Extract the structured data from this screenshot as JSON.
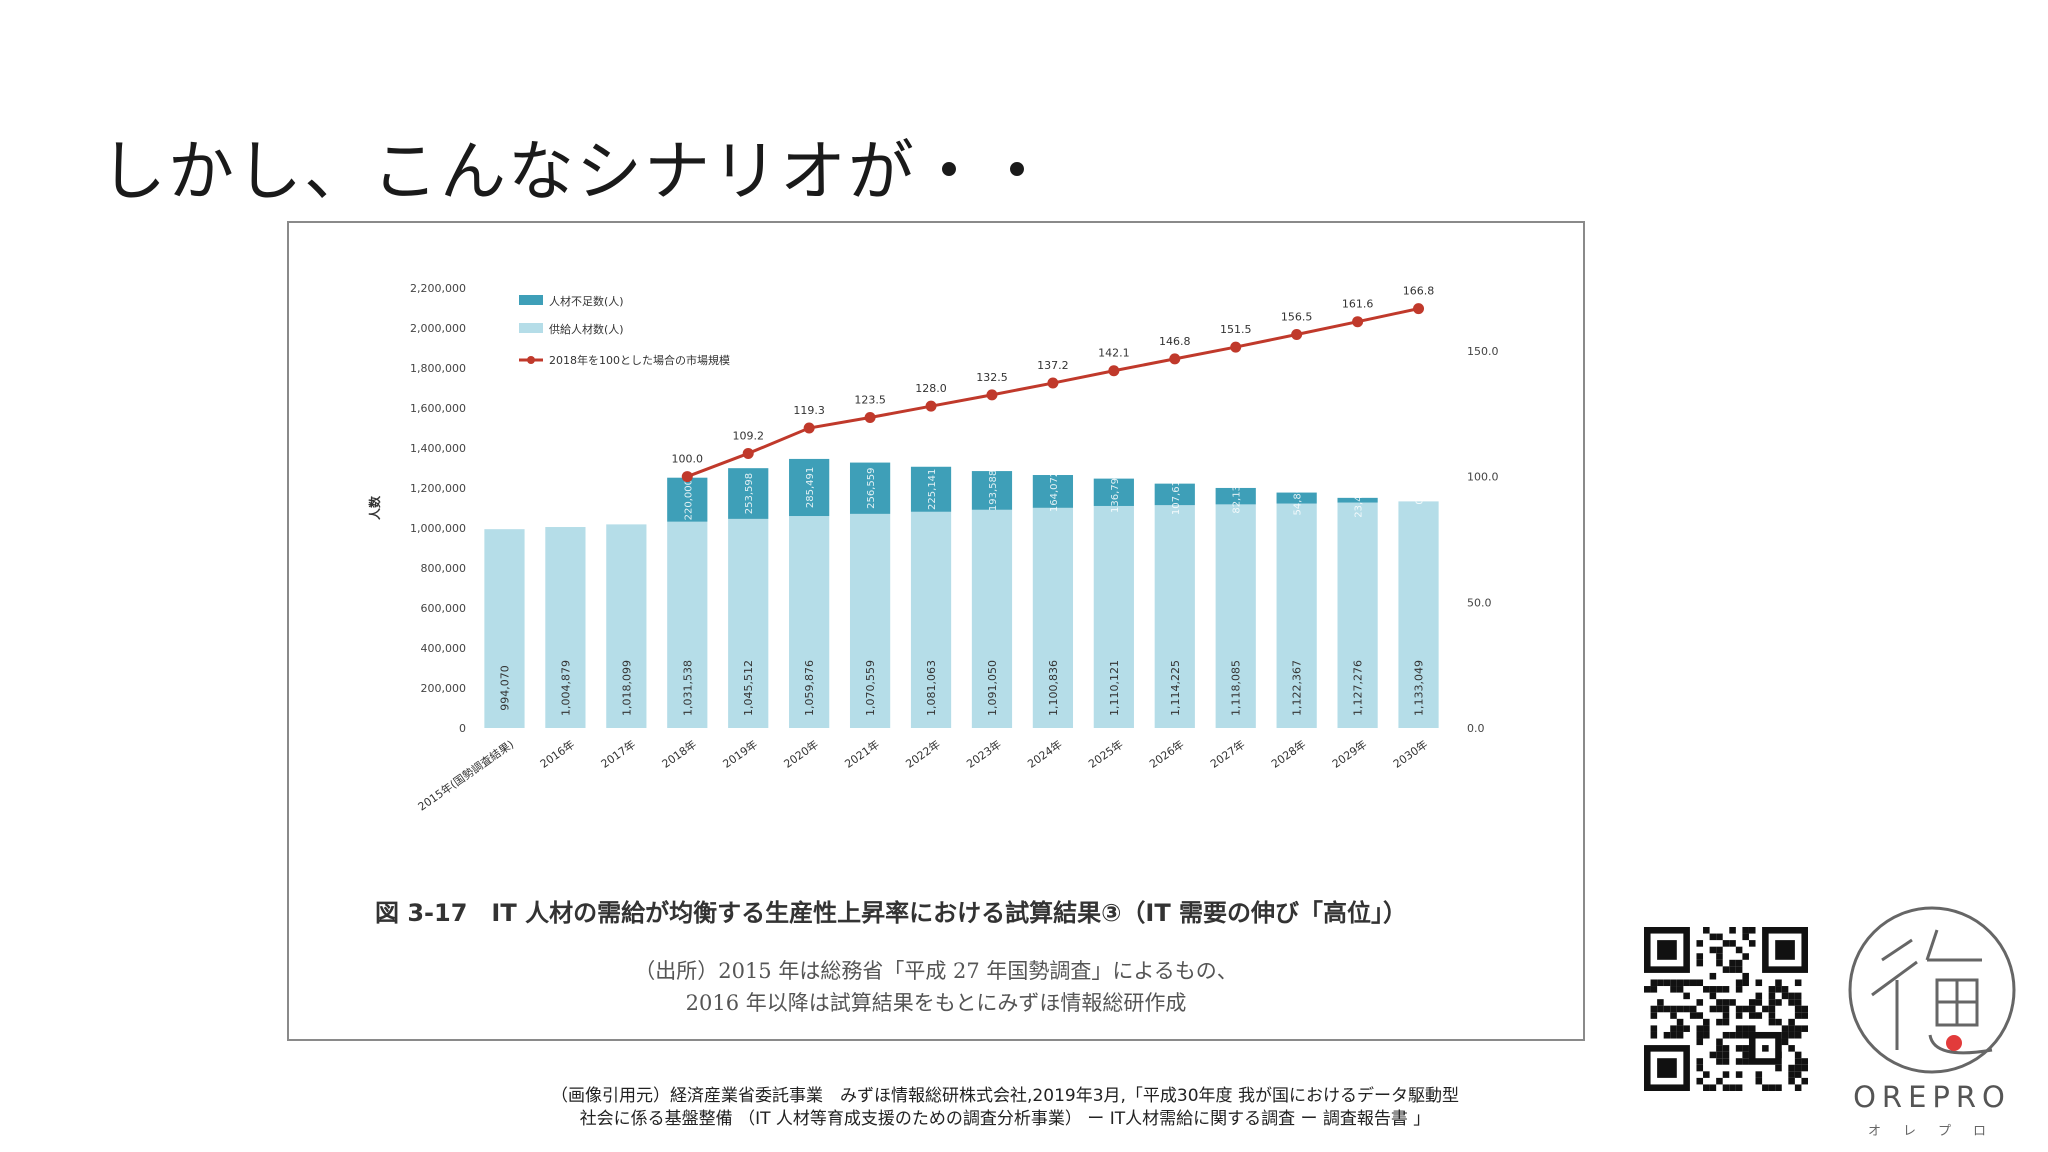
{
  "slide": {
    "title": "しかし、こんなシナリオが・・",
    "citation_line1": "（画像引用元）経済産業省委託事業　みずほ情報総研株式会社,2019年3月,「平成30年度 我が国におけるデータ駆動型",
    "citation_line2": "社会に係る基盤整備 （IT 人材等育成支援のための調査分析事業） ー IT人材需給に関する調査 ー 調査報告書 」"
  },
  "figure": {
    "caption": "図 3-17　IT 人材の需給が均衡する生産性上昇率における試算結果③（IT 需要の伸び「高位」）",
    "source_line1": "（出所）2015 年は総務省「平成 27 年国勢調査」によるもの、",
    "source_line2": "2016 年以降は試算結果をもとにみずほ情報総研作成"
  },
  "logo": {
    "brand": "OREPRO",
    "kana": "オレプロ",
    "mark_color": "#e23b3b"
  },
  "qr_code": {
    "icon": "qr-code-icon"
  },
  "chart_data": {
    "type": "bar",
    "stacked": true,
    "ylabel": "人数",
    "ylim": [
      0,
      2200000
    ],
    "y2lim": [
      0,
      175
    ],
    "yticks": [
      "0",
      "200,000",
      "400,000",
      "600,000",
      "800,000",
      "1,000,000",
      "1,200,000",
      "1,400,000",
      "1,600,000",
      "1,800,000",
      "2,000,000",
      "2,200,000"
    ],
    "y2ticks": [
      "0.0",
      "50.0",
      "100.0",
      "150.0"
    ],
    "categories": [
      "2015年(国勢調査結果)",
      "2016年",
      "2017年",
      "2018年",
      "2019年",
      "2020年",
      "2021年",
      "2022年",
      "2023年",
      "2024年",
      "2025年",
      "2026年",
      "2027年",
      "2028年",
      "2029年",
      "2030年"
    ],
    "legend_position": "top-left",
    "series": [
      {
        "name": "供給人材数(人)",
        "color": "#b5dde8",
        "values": [
          994070,
          1004879,
          1018099,
          1031538,
          1045512,
          1059876,
          1070559,
          1081063,
          1091050,
          1100836,
          1110121,
          1114225,
          1118085,
          1122367,
          1127276,
          1133049
        ],
        "labels": [
          "994,070",
          "1,004,879",
          "1,018,099",
          "1,031,538",
          "1,045,512",
          "1,059,876",
          "1,070,559",
          "1,081,063",
          "1,091,050",
          "1,100,836",
          "1,110,121",
          "1,114,225",
          "1,118,085",
          "1,122,367",
          "1,127,276",
          "1,133,049"
        ]
      },
      {
        "name": "人材不足数(人)",
        "color": "#3e9fb8",
        "values": [
          0,
          0,
          0,
          220000,
          253598,
          285491,
          256559,
          225141,
          193588,
          164072,
          136796,
          107613,
          82136,
          54809,
          23452,
          0
        ],
        "labels": [
          "",
          "",
          "",
          "220,000",
          "253,598",
          "285,491",
          "256,559",
          "225,141",
          "193,588",
          "164,072",
          "136,796",
          "107,613",
          "82,136",
          "54,809",
          "23,452",
          "0"
        ]
      },
      {
        "name": "2018年を100とした場合の市場規模",
        "type": "line",
        "axis": "right",
        "color": "#c0392b",
        "values": [
          null,
          null,
          null,
          100.0,
          109.2,
          119.3,
          123.5,
          128.0,
          132.5,
          137.2,
          142.1,
          146.8,
          151.5,
          156.5,
          161.6,
          166.8
        ],
        "labels": [
          "",
          "",
          "",
          "100.0",
          "109.2",
          "119.3",
          "123.5",
          "128.0",
          "132.5",
          "137.2",
          "142.1",
          "146.8",
          "151.5",
          "156.5",
          "161.6",
          "166.8"
        ]
      }
    ]
  }
}
